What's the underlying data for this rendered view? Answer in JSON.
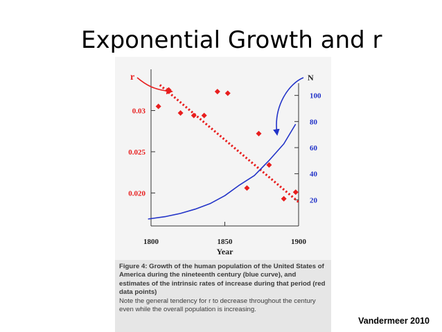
{
  "slide": {
    "title": "Exponential Growth and r",
    "credit": "Vandermeer 2010"
  },
  "caption": {
    "heading": "Figure 4: Growth of the human population of the United States of America during the nineteenth century (blue curve), and estimates of the intrinsic rates of increase during that period (red data points)",
    "note": "Note the general tendency for r to decrease throughout the century even while the overall population is increasing."
  },
  "colors": {
    "r_series": "#e81e1e",
    "n_series": "#2233c8",
    "axis": "#333333"
  },
  "chart_data": {
    "type": "scatter",
    "xlabel": "Year",
    "xlim": [
      1800,
      1900
    ],
    "x_ticks": [
      1800,
      1850,
      1900
    ],
    "left_axis": {
      "label": "r",
      "ylim": [
        0.016,
        0.035
      ],
      "ticks": [
        0.03,
        0.025,
        0.02
      ],
      "tick_labels": [
        "0.03",
        "0.025",
        "0.020"
      ]
    },
    "right_axis": {
      "label": "N",
      "ylim": [
        0,
        120
      ],
      "ticks": [
        100,
        80,
        60,
        40,
        20
      ],
      "tick_labels": [
        "100",
        "80",
        "60",
        "40",
        "20"
      ]
    },
    "series": [
      {
        "name": "r",
        "kind": "points",
        "color": "#e81e1e",
        "x": [
          1805,
          1812,
          1820,
          1829,
          1836,
          1845,
          1852,
          1873,
          1865,
          1880,
          1890,
          1898
        ],
        "y": [
          0.0305,
          0.0325,
          0.0297,
          0.0294,
          0.0294,
          0.0323,
          0.0321,
          0.0272,
          0.0206,
          0.0234,
          0.0193,
          0.0201
        ]
      },
      {
        "name": "r trend",
        "kind": "dotted-line",
        "color": "#e81e1e",
        "x": [
          1806,
          1900
        ],
        "y": [
          0.0331,
          0.0189
        ]
      },
      {
        "name": "N",
        "kind": "line",
        "color": "#2233c8",
        "x": [
          1798,
          1810,
          1820,
          1830,
          1840,
          1850,
          1860,
          1870,
          1880,
          1890,
          1898
        ],
        "y": [
          5.3,
          7.2,
          9.6,
          12.9,
          17.1,
          23.2,
          31.4,
          38.6,
          50.2,
          62.9,
          78
        ]
      }
    ],
    "annotations": [
      {
        "text": "r",
        "target": "r",
        "color": "#e81e1e"
      },
      {
        "text": "N",
        "target": "N",
        "color": "#2233c8"
      }
    ]
  }
}
